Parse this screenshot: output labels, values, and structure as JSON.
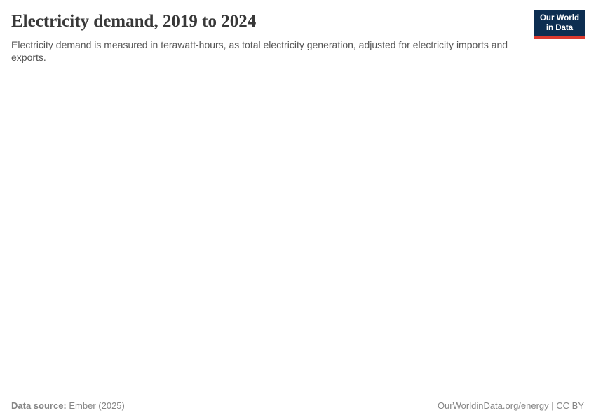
{
  "header": {
    "title": "Electricity demand, 2019 to 2024",
    "subtitle": "Electricity demand is measured in terawatt-hours, as total electricity generation, adjusted for electricity imports and exports.",
    "logo": {
      "line1": "Our World",
      "line2": "in Data",
      "bg_color": "#0d2e51",
      "accent_color": "#dc3a2f"
    }
  },
  "footer": {
    "source_label": "Data source:",
    "source_value": "Ember (2025)",
    "license": "OurWorldinData.org/energy | CC BY"
  },
  "colors": {
    "title_text": "#383838",
    "subtitle_text": "#555555",
    "footer_text": "#858585"
  },
  "chart_data": {
    "type": "line",
    "title": "Electricity demand, 2019 to 2024",
    "subtitle": "Electricity demand is measured in terawatt-hours, as total electricity generation, adjusted for electricity imports and exports.",
    "x_range": [
      2019,
      2024
    ],
    "series": [],
    "plot_area_empty": true
  }
}
